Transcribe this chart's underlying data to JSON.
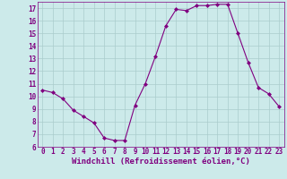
{
  "x": [
    0,
    1,
    2,
    3,
    4,
    5,
    6,
    7,
    8,
    9,
    10,
    11,
    12,
    13,
    14,
    15,
    16,
    17,
    18,
    19,
    20,
    21,
    22,
    23
  ],
  "y": [
    10.5,
    10.3,
    9.8,
    8.9,
    8.4,
    7.9,
    6.7,
    6.5,
    6.5,
    9.3,
    11.0,
    13.2,
    15.6,
    16.9,
    16.8,
    17.2,
    17.2,
    17.3,
    17.3,
    15.0,
    12.7,
    10.7,
    10.2,
    9.2
  ],
  "line_color": "#800080",
  "marker": "D",
  "marker_size": 2,
  "bg_color": "#cceaea",
  "grid_color": "#aacccc",
  "tick_color": "#800080",
  "label_color": "#800080",
  "xlabel": "Windchill (Refroidissement éolien,°C)",
  "ylim": [
    6,
    17.5
  ],
  "xlim": [
    -0.5,
    23.5
  ],
  "yticks": [
    6,
    7,
    8,
    9,
    10,
    11,
    12,
    13,
    14,
    15,
    16,
    17
  ],
  "xticks": [
    0,
    1,
    2,
    3,
    4,
    5,
    6,
    7,
    8,
    9,
    10,
    11,
    12,
    13,
    14,
    15,
    16,
    17,
    18,
    19,
    20,
    21,
    22,
    23
  ],
  "tick_fontsize": 5.5,
  "xlabel_fontsize": 6.5
}
